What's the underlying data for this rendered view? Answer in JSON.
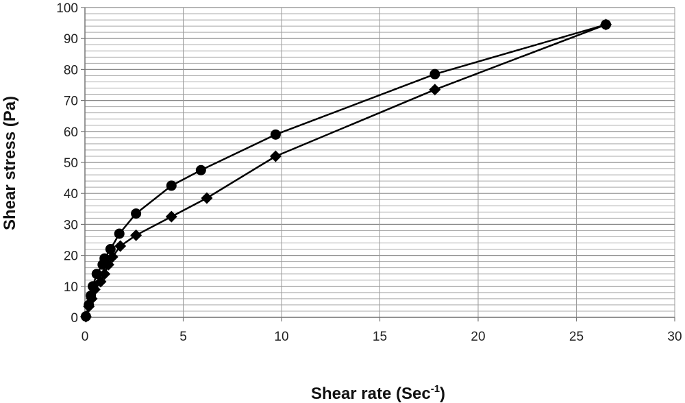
{
  "chart_data": {
    "type": "scatter",
    "xlabel": "Shear rate (Sec",
    "xlabel_sup": "-1",
    "xlabel_suffix": ")",
    "ylabel": "Shear stress (Pa)",
    "xlim": [
      0,
      30
    ],
    "ylim": [
      0,
      100
    ],
    "xticks": [
      0,
      5,
      10,
      15,
      20,
      25,
      30
    ],
    "yticks": [
      0,
      10,
      20,
      30,
      40,
      50,
      60,
      70,
      80,
      90,
      100
    ],
    "minor_grid_step_y": 2,
    "grid": true,
    "legend": "none",
    "lines_connected": true,
    "series": [
      {
        "marker": "circle",
        "color": "#000000",
        "points": [
          {
            "x": 0.05,
            "y": 0.3
          },
          {
            "x": 0.2,
            "y": 4
          },
          {
            "x": 0.3,
            "y": 7
          },
          {
            "x": 0.4,
            "y": 10
          },
          {
            "x": 0.6,
            "y": 14
          },
          {
            "x": 0.9,
            "y": 17
          },
          {
            "x": 1.0,
            "y": 19
          },
          {
            "x": 1.3,
            "y": 22
          },
          {
            "x": 1.75,
            "y": 27
          },
          {
            "x": 2.6,
            "y": 33.5
          },
          {
            "x": 4.4,
            "y": 42.5
          },
          {
            "x": 5.9,
            "y": 47.5
          },
          {
            "x": 9.7,
            "y": 59
          },
          {
            "x": 17.8,
            "y": 78.5
          },
          {
            "x": 26.5,
            "y": 94.5
          }
        ]
      },
      {
        "marker": "diamond",
        "color": "#000000",
        "points": [
          {
            "x": 0.05,
            "y": 0.2
          },
          {
            "x": 0.2,
            "y": 3.5
          },
          {
            "x": 0.35,
            "y": 6
          },
          {
            "x": 0.5,
            "y": 9
          },
          {
            "x": 0.8,
            "y": 11.5
          },
          {
            "x": 1.0,
            "y": 14
          },
          {
            "x": 1.2,
            "y": 17
          },
          {
            "x": 1.4,
            "y": 19.5
          },
          {
            "x": 1.8,
            "y": 23
          },
          {
            "x": 2.6,
            "y": 26.5
          },
          {
            "x": 4.4,
            "y": 32.5
          },
          {
            "x": 6.2,
            "y": 38.5
          },
          {
            "x": 9.7,
            "y": 52
          },
          {
            "x": 17.8,
            "y": 73.5
          },
          {
            "x": 26.5,
            "y": 94.5
          }
        ]
      }
    ]
  }
}
